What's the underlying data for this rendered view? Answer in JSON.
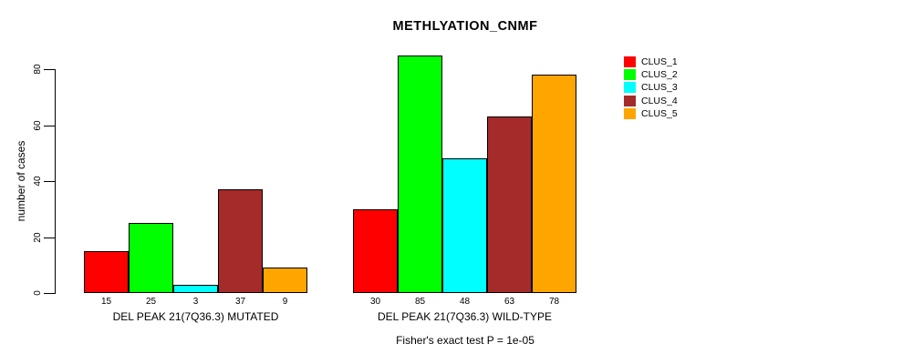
{
  "chart_data": {
    "type": "bar",
    "title": "METHLYATION_CNMF",
    "ylabel": "number of cases",
    "ylim": [
      0,
      80
    ],
    "yticks": [
      0,
      20,
      40,
      60,
      80
    ],
    "grid": false,
    "legend_position": "right",
    "legend": [
      "CLUS_1",
      "CLUS_2",
      "CLUS_3",
      "CLUS_4",
      "CLUS_5"
    ],
    "colors": [
      "#FF0000",
      "#00FF00",
      "#00FFFF",
      "#A52A2A",
      "#FFA500"
    ],
    "bar_border_color": "#000000",
    "groups": [
      {
        "label": "DEL PEAK 21(7Q36.3) MUTATED",
        "values": [
          15,
          25,
          3,
          37,
          9
        ]
      },
      {
        "label": "DEL PEAK 21(7Q36.3) WILD-TYPE",
        "values": [
          30,
          85,
          48,
          63,
          78
        ]
      }
    ],
    "footnote": "Fisher's exact test P = 1e-05"
  }
}
